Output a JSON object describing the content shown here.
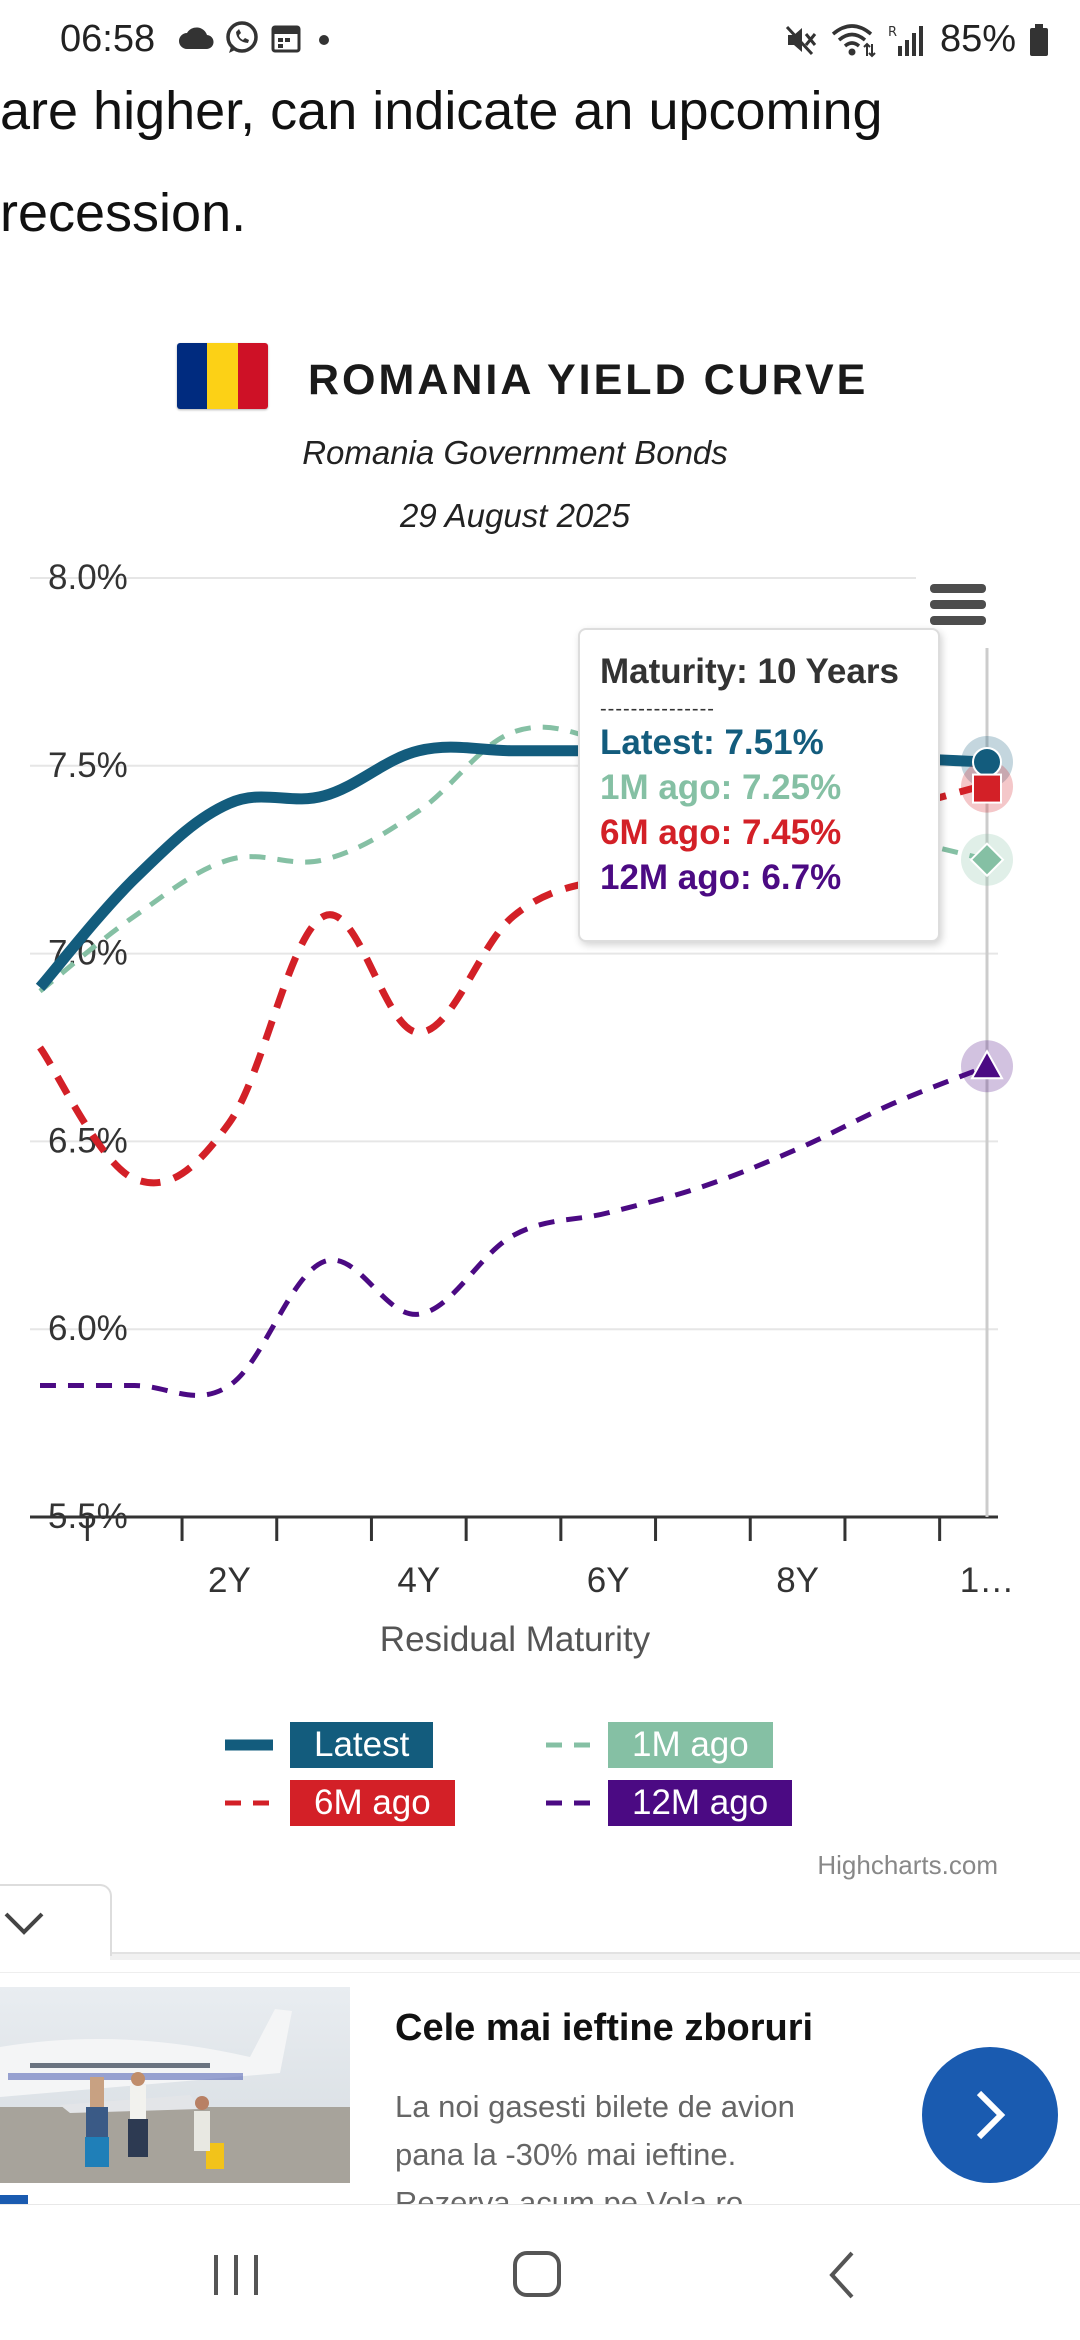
{
  "status_bar": {
    "time": "06:58",
    "battery": "85%",
    "left_icons": [
      "cloud-icon",
      "whatsapp-icon",
      "calendar-icon",
      "dot-icon"
    ],
    "right_icons": [
      "mute-icon",
      "wifi-icon",
      "signal-icon",
      "battery-icon"
    ]
  },
  "article": {
    "line1": "are higher, can indicate an upcoming",
    "line2": "recession."
  },
  "chart": {
    "title": "ROMANIA YIELD CURVE",
    "subtitle": "Romania Government Bonds",
    "date": "29 August 2025",
    "flag_colors": [
      "#002B7F",
      "#FCD116",
      "#CE1126"
    ],
    "y_tick_labels": [
      "8.0%",
      "7.5%",
      "7.0%",
      "6.5%",
      "6.0%",
      "5.5%"
    ],
    "x_tick_labels": [
      "2Y",
      "4Y",
      "6Y",
      "8Y",
      "1…"
    ],
    "x_axis_title": "Residual Maturity",
    "credits": "Highcharts.com",
    "tooltip": {
      "header": "Maturity: 10 Years",
      "separator": "---------------",
      "rows": [
        {
          "text": "Latest: 7.51%",
          "color": "#135c7d"
        },
        {
          "text": "1M ago: 7.25%",
          "color": "#85c0a4"
        },
        {
          "text": "6M ago: 7.45%",
          "color": "#d32027"
        },
        {
          "text": "12M ago: 6.7%",
          "color": "#4b0a83"
        }
      ]
    },
    "legend": [
      {
        "label": "Latest",
        "color": "#135c7d",
        "style": "solid"
      },
      {
        "label": "1M ago",
        "color": "#85c0a4",
        "style": "dashed"
      },
      {
        "label": "6M ago",
        "color": "#d32027",
        "style": "dashed"
      },
      {
        "label": "12M ago",
        "color": "#4b0a83",
        "style": "dashed"
      }
    ]
  },
  "chart_data": {
    "type": "line",
    "title": "ROMANIA YIELD CURVE",
    "subtitle": "Romania Government Bonds",
    "xlabel": "Residual Maturity",
    "ylabel": "",
    "x": [
      0,
      1,
      2,
      3,
      4,
      5,
      6,
      7,
      8,
      9,
      10
    ],
    "xlim": [
      0,
      10
    ],
    "ylim": [
      5.5,
      8.0
    ],
    "y_unit": "%",
    "grid": true,
    "legend_position": "bottom",
    "series": [
      {
        "name": "Latest",
        "color": "#135c7d",
        "values": [
          6.91,
          7.2,
          7.4,
          7.42,
          7.54,
          7.54,
          7.54,
          7.54,
          7.52,
          7.52,
          7.51
        ]
      },
      {
        "name": "1M ago",
        "color": "#85c0a4",
        "values": [
          6.9,
          7.1,
          7.25,
          7.25,
          7.38,
          7.59,
          7.56,
          7.44,
          7.36,
          7.31,
          7.25
        ]
      },
      {
        "name": "6M ago",
        "color": "#d32027",
        "values": [
          6.75,
          6.4,
          6.55,
          7.1,
          6.79,
          7.1,
          7.2,
          7.22,
          7.3,
          7.38,
          7.45
        ]
      },
      {
        "name": "12M ago",
        "color": "#4b0a83",
        "values": [
          5.85,
          5.85,
          5.85,
          6.18,
          6.04,
          6.25,
          6.31,
          6.38,
          6.48,
          6.6,
          6.7
        ]
      }
    ]
  },
  "ad": {
    "title": "Cele mai ieftine zboruri",
    "description": "La noi gasesti bilete de avion pana la -30% mai ieftine. Rezerva acum pe Vola.ro"
  }
}
